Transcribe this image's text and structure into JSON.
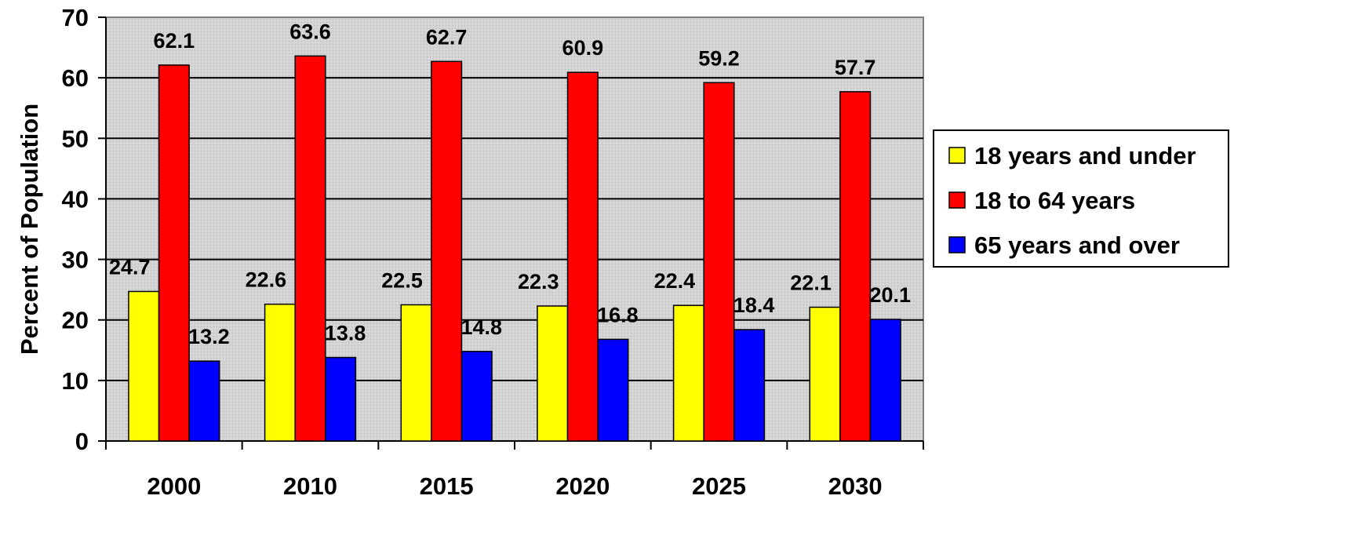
{
  "chart_data": {
    "type": "bar",
    "categories": [
      "2000",
      "2010",
      "2015",
      "2020",
      "2025",
      "2030"
    ],
    "series": [
      {
        "name": "18 years and under",
        "values": [
          24.7,
          22.6,
          22.5,
          22.3,
          22.4,
          22.1
        ],
        "color": "#FFFF00"
      },
      {
        "name": "18 to 64 years",
        "values": [
          62.1,
          63.6,
          62.7,
          60.9,
          59.2,
          57.7
        ],
        "color": "#FF0000"
      },
      {
        "name": "65 years and over",
        "values": [
          13.2,
          13.8,
          14.8,
          16.8,
          18.4,
          20.1
        ],
        "color": "#0000FF"
      }
    ],
    "ylabel": "Percent of Population",
    "ylim": [
      0,
      70
    ],
    "yticks": [
      "0",
      "10",
      "20",
      "30",
      "40",
      "50",
      "60",
      "70"
    ],
    "legend_position": "right",
    "plot_background": "#D3D3D3"
  }
}
